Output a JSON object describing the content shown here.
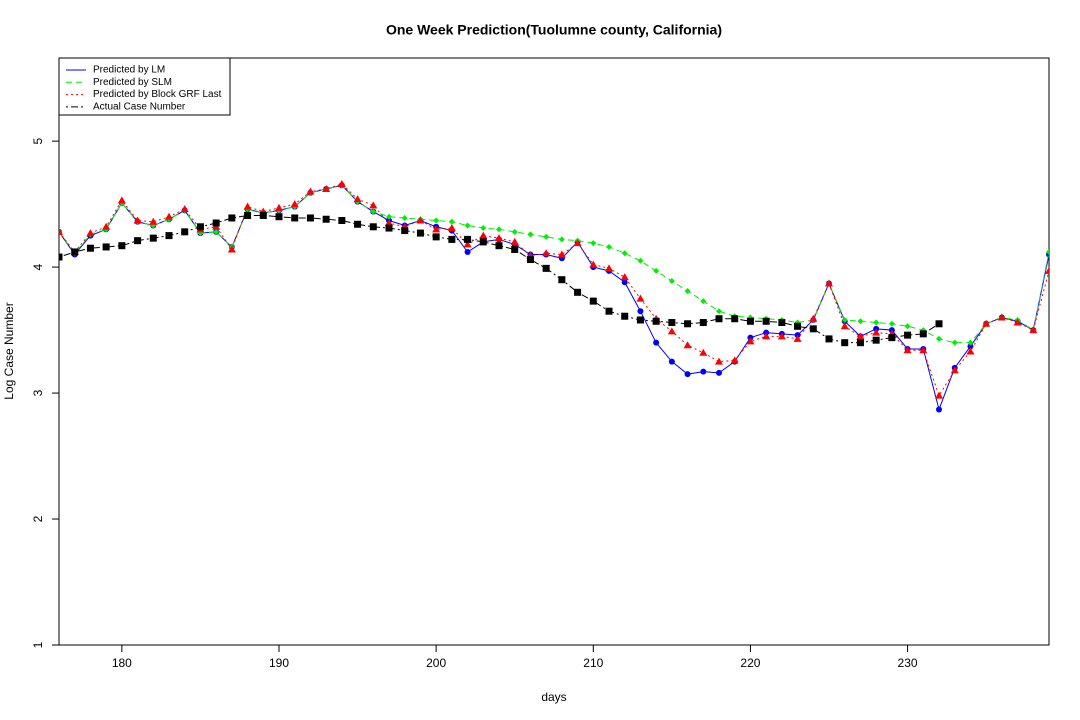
{
  "chart_data": {
    "type": "line",
    "title": "One Week Prediction(Tuolumne county, California)",
    "xlabel": "days",
    "ylabel": "Log Case Number",
    "x": [
      176,
      177,
      178,
      179,
      180,
      181,
      182,
      183,
      184,
      185,
      186,
      187,
      188,
      189,
      190,
      191,
      192,
      193,
      194,
      195,
      196,
      197,
      198,
      199,
      200,
      201,
      202,
      203,
      204,
      205,
      206,
      207,
      208,
      209,
      210,
      211,
      212,
      213,
      214,
      215,
      216,
      217,
      218,
      219,
      220,
      221,
      222,
      223,
      224,
      225,
      226,
      227,
      228,
      229,
      230,
      231,
      232,
      233,
      234,
      235,
      236,
      237,
      238,
      239
    ],
    "xlim": [
      176,
      239
    ],
    "xticks": [
      180,
      190,
      200,
      210,
      220,
      230
    ],
    "ylim": [
      1,
      5.66
    ],
    "yticks": [
      1,
      2,
      3,
      4,
      5
    ],
    "legend": "top-left",
    "series": [
      {
        "name": "Predicted by LM",
        "color": "#0000ff",
        "dash": "solid",
        "marker": "circle",
        "values": [
          4.28,
          4.1,
          4.25,
          4.3,
          4.51,
          4.36,
          4.33,
          4.38,
          4.45,
          4.27,
          4.28,
          4.16,
          4.46,
          4.43,
          4.45,
          4.48,
          4.59,
          4.62,
          4.65,
          4.52,
          4.44,
          4.37,
          4.33,
          4.37,
          4.32,
          4.29,
          4.12,
          4.2,
          4.22,
          4.18,
          4.1,
          4.1,
          4.07,
          4.2,
          4.0,
          3.97,
          3.88,
          3.65,
          3.4,
          3.25,
          3.15,
          3.17,
          3.16,
          3.25,
          3.44,
          3.48,
          3.47,
          3.46,
          3.58,
          3.87,
          3.57,
          3.45,
          3.51,
          3.5,
          3.35,
          3.35,
          2.87,
          3.2,
          3.37,
          3.55,
          3.6,
          3.57,
          3.5,
          4.1
        ]
      },
      {
        "name": "Predicted by SLM",
        "color": "#00ee00",
        "dash": "dashed",
        "marker": "diamond",
        "values": [
          4.28,
          4.11,
          4.26,
          4.3,
          4.51,
          4.36,
          4.33,
          4.38,
          4.45,
          4.27,
          4.28,
          4.16,
          4.46,
          4.43,
          4.45,
          4.48,
          4.59,
          4.62,
          4.65,
          4.52,
          4.44,
          4.4,
          4.39,
          4.38,
          4.37,
          4.36,
          4.33,
          4.31,
          4.3,
          4.28,
          4.26,
          4.24,
          4.22,
          4.21,
          4.19,
          4.16,
          4.11,
          4.05,
          3.97,
          3.89,
          3.81,
          3.73,
          3.65,
          3.61,
          3.6,
          3.59,
          3.58,
          3.56,
          3.58,
          3.87,
          3.58,
          3.57,
          3.56,
          3.55,
          3.53,
          3.5,
          3.43,
          3.4,
          3.4,
          3.55,
          3.6,
          3.58,
          3.5,
          4.12
        ]
      },
      {
        "name": "Predicted by Block GRF Last",
        "color": "#ff0000",
        "dash": "dotted",
        "marker": "triangle",
        "values": [
          4.28,
          4.12,
          4.27,
          4.32,
          4.53,
          4.37,
          4.36,
          4.4,
          4.46,
          4.3,
          4.32,
          4.14,
          4.48,
          4.44,
          4.47,
          4.5,
          4.6,
          4.62,
          4.66,
          4.54,
          4.49,
          4.35,
          4.32,
          4.37,
          4.3,
          4.31,
          4.18,
          4.25,
          4.23,
          4.2,
          4.09,
          4.11,
          4.1,
          4.19,
          4.02,
          3.99,
          3.92,
          3.75,
          3.59,
          3.49,
          3.38,
          3.32,
          3.25,
          3.26,
          3.41,
          3.45,
          3.45,
          3.43,
          3.59,
          3.87,
          3.53,
          3.45,
          3.48,
          3.47,
          3.34,
          3.34,
          2.98,
          3.18,
          3.33,
          3.55,
          3.6,
          3.56,
          3.5,
          3.97
        ]
      },
      {
        "name": "Actual Case Number",
        "color": "#000000",
        "dash": "dashdot",
        "marker": "square",
        "values": [
          4.08,
          4.12,
          4.15,
          4.16,
          4.17,
          4.21,
          4.23,
          4.25,
          4.28,
          4.32,
          4.35,
          4.39,
          4.41,
          4.41,
          4.4,
          4.39,
          4.39,
          4.38,
          4.37,
          4.34,
          4.32,
          4.31,
          4.29,
          4.27,
          4.24,
          4.22,
          4.22,
          4.2,
          4.17,
          4.14,
          4.06,
          3.99,
          3.9,
          3.8,
          3.73,
          3.65,
          3.61,
          3.58,
          3.57,
          3.56,
          3.55,
          3.56,
          3.59,
          3.59,
          3.57,
          3.57,
          3.56,
          3.53,
          3.51,
          3.43,
          3.4,
          3.4,
          3.42,
          3.44,
          3.46,
          3.47,
          3.55,
          null,
          null,
          null,
          null,
          null,
          null,
          null
        ]
      }
    ]
  }
}
